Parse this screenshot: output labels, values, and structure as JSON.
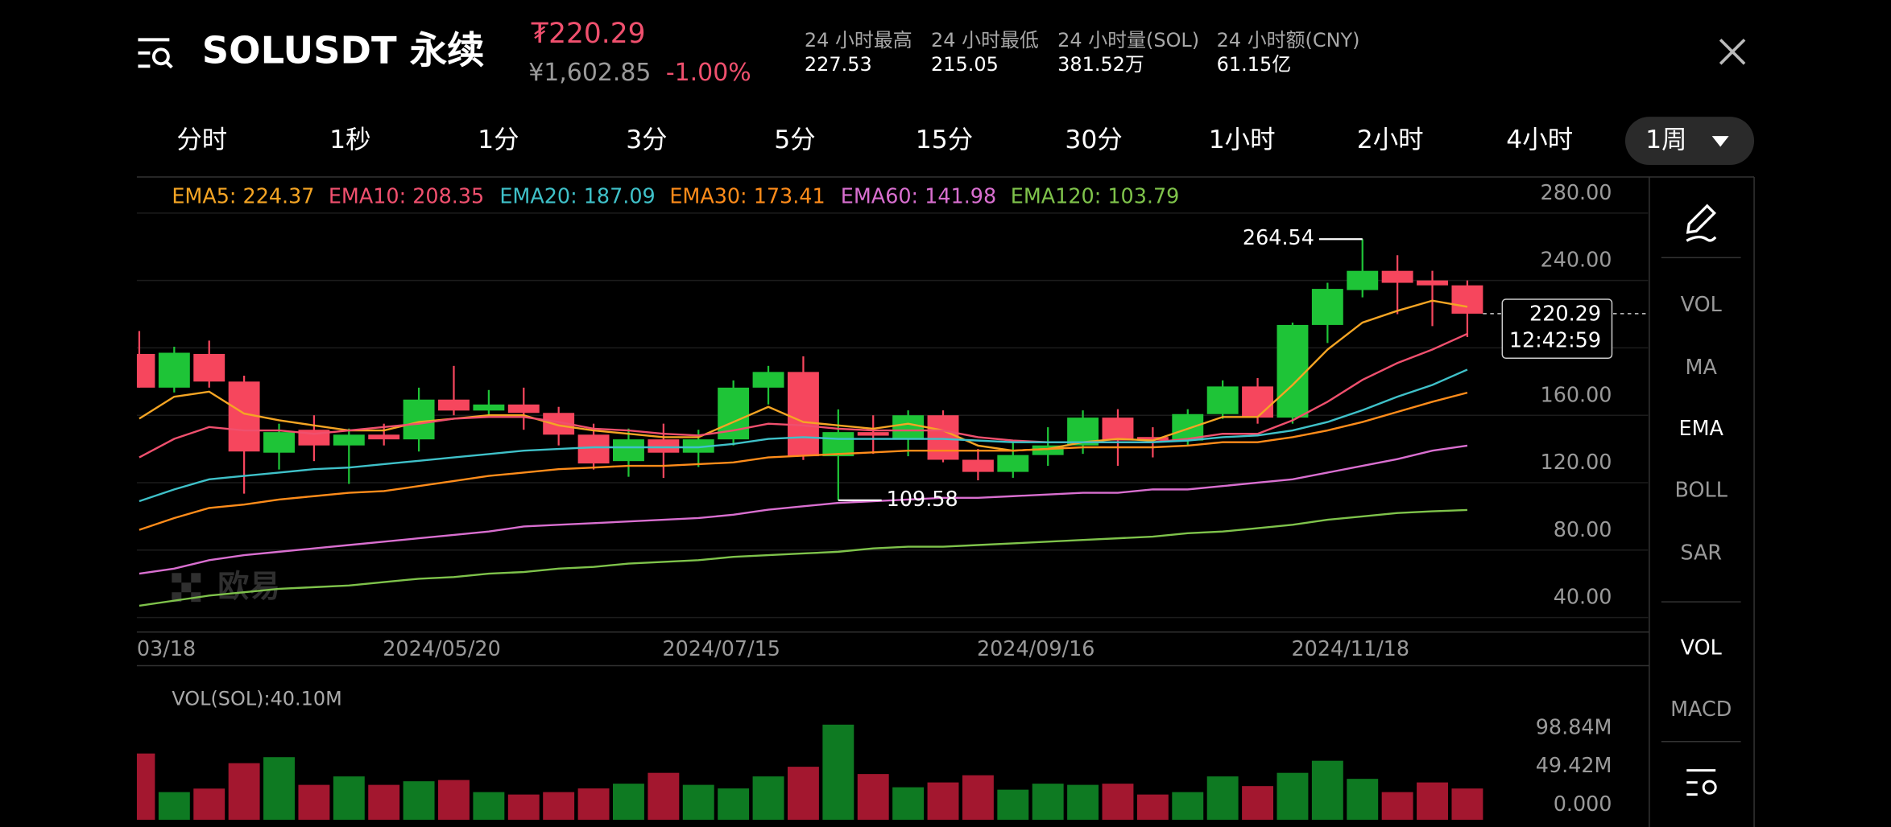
{
  "header": {
    "pair": "SOLUSDT 永续",
    "price": "₮220.29",
    "price_cny": "¥1,602.85",
    "change": "-1.00%",
    "stats": [
      {
        "label": "24 小时最高",
        "value": "227.53"
      },
      {
        "label": "24 小时最低",
        "value": "215.05"
      },
      {
        "label": "24 小时量(SOL)",
        "value": "381.52万"
      },
      {
        "label": "24 小时额(CNY)",
        "value": "61.15亿"
      }
    ]
  },
  "timeframes": [
    "分时",
    "1秒",
    "1分",
    "3分",
    "5分",
    "15分",
    "30分",
    "1小时",
    "2小时",
    "4小时"
  ],
  "selected_timeframe": "1周",
  "side_menu": {
    "main": [
      "VOL",
      "MA",
      "EMA",
      "BOLL",
      "SAR"
    ],
    "active_main": "EMA",
    "sub": [
      "VOL",
      "MACD"
    ],
    "active_sub": "VOL"
  },
  "chart": {
    "type": "candlestick",
    "watermark": "欧易",
    "up_color": "#1ec437",
    "down_color": "#f6465d",
    "categories": [
      "03/18",
      null,
      null,
      null,
      null,
      null,
      null,
      null,
      null,
      "2024/05/20",
      null,
      null,
      null,
      null,
      null,
      null,
      null,
      "2024/07/15",
      null,
      null,
      null,
      null,
      null,
      null,
      null,
      null,
      "2024/09/16",
      null,
      null,
      null,
      null,
      null,
      null,
      null,
      null,
      "2024/11/18",
      null,
      null,
      null
    ],
    "open": [
      196.4,
      176.4,
      196.4,
      180.0,
      137.8,
      151.4,
      142.1,
      148.5,
      145.7,
      169.3,
      162.8,
      166.4,
      161.4,
      148.5,
      132.8,
      145.7,
      137.8,
      145.7,
      176.4,
      185.7,
      135.7,
      150.0,
      145.7,
      160.0,
      133.6,
      126.4,
      136.4,
      142.1,
      158.6,
      147.1,
      145.0,
      160.7,
      177.1,
      158.6,
      213.6,
      234.3,
      245.7,
      240.0,
      237.1
    ],
    "close": [
      176.4,
      197.1,
      180.0,
      138.5,
      150.0,
      142.1,
      148.5,
      145.7,
      169.3,
      162.8,
      166.4,
      161.4,
      148.5,
      131.4,
      145.7,
      137.8,
      145.7,
      176.4,
      185.7,
      135.7,
      150.0,
      147.9,
      160.0,
      133.6,
      126.4,
      136.4,
      142.1,
      158.6,
      145.0,
      145.0,
      160.7,
      177.1,
      158.6,
      213.6,
      235.0,
      245.7,
      238.6,
      237.1,
      220.29
    ],
    "high": [
      210.0,
      200.7,
      204.3,
      183.5,
      155.0,
      160.0,
      152.1,
      155.0,
      176.4,
      189.3,
      175.0,
      176.4,
      165.0,
      155.0,
      152.1,
      155.0,
      151.4,
      180.7,
      189.3,
      195.0,
      163.5,
      160.0,
      162.9,
      162.9,
      140.0,
      144.3,
      152.9,
      162.9,
      163.6,
      152.9,
      163.6,
      180.7,
      182.1,
      215.0,
      238.6,
      264.54,
      255.0,
      245.7,
      240.0
    ],
    "low": [
      176.4,
      173.5,
      176.4,
      113.5,
      127.8,
      132.8,
      119.3,
      142.1,
      138.5,
      160.0,
      160.0,
      151.4,
      142.1,
      127.8,
      123.5,
      122.8,
      129.3,
      142.1,
      166.4,
      133.5,
      109.58,
      137.1,
      135.7,
      132.1,
      121.4,
      122.9,
      130.0,
      137.1,
      130.0,
      135.0,
      142.1,
      157.9,
      155.0,
      155.0,
      202.9,
      230.0,
      220.0,
      212.9,
      206.4
    ],
    "high_label_index": 35,
    "low_label_index": 20,
    "last_price": 220.29,
    "countdown": "12:42:59",
    "ylim": [
      31.4,
      300.7
    ],
    "yticks": [
      {
        "value": 280,
        "label": "280.00"
      },
      {
        "value": 240,
        "label": "240.00"
      },
      {
        "value": 200,
        "label": "200.00"
      },
      {
        "value": 160,
        "label": "160.00"
      },
      {
        "value": 120,
        "label": "120.00"
      },
      {
        "value": 80,
        "label": "80.00"
      },
      {
        "value": 40,
        "label": "40.00"
      }
    ],
    "ema": [
      {
        "name": "EMA5",
        "legend_label": "EMA5: 224.37",
        "color": "#f5a524",
        "values": [
          158,
          171,
          174,
          161,
          157,
          154,
          151,
          151,
          156,
          158,
          160,
          160,
          154,
          151,
          149,
          147,
          147,
          156,
          165,
          156,
          154,
          152,
          155,
          151,
          142,
          139,
          140,
          144,
          146,
          145,
          152,
          159,
          159,
          178,
          199,
          215,
          222,
          228,
          224.37
        ]
      },
      {
        "name": "EMA10",
        "legend_label": "EMA10: 208.35",
        "color": "#f0506e",
        "values": [
          135,
          146,
          153,
          151,
          151,
          149,
          151,
          153,
          155,
          158,
          159,
          159,
          156,
          152,
          151,
          149,
          148,
          151,
          155,
          154,
          152,
          151,
          151,
          151,
          147,
          145,
          144,
          144,
          144,
          144,
          146,
          149,
          149,
          157,
          168,
          181,
          191,
          199,
          208.35
        ]
      },
      {
        "name": "EMA20",
        "legend_label": "EMA20: 187.09",
        "color": "#3fc1c9",
        "values": [
          109,
          116,
          122,
          124,
          126,
          128,
          129,
          131,
          133,
          135,
          137,
          139,
          140,
          141,
          141,
          141,
          141,
          143,
          146,
          147,
          146,
          146,
          146,
          146,
          145,
          144,
          144,
          144,
          144,
          144,
          145,
          147,
          148,
          151,
          156,
          163,
          171,
          178,
          187.09
        ]
      },
      {
        "name": "EMA30",
        "legend_label": "EMA30: 173.41",
        "color": "#ff8c1a",
        "values": [
          92,
          99,
          105,
          107,
          110,
          112,
          114,
          115,
          118,
          121,
          124,
          126,
          128,
          129,
          130,
          130,
          131,
          132,
          135,
          136,
          137,
          138,
          139,
          139,
          139,
          139,
          140,
          141,
          141,
          141,
          142,
          144,
          144,
          147,
          151,
          156,
          162,
          168,
          173.41
        ]
      },
      {
        "name": "EMA60",
        "legend_label": "EMA60: 141.98",
        "color": "#d96fd0",
        "values": [
          66,
          69,
          74,
          77,
          79,
          81,
          83,
          85,
          87,
          89,
          91,
          94,
          95,
          96,
          97,
          98,
          99,
          101,
          104,
          106,
          108,
          109,
          110,
          111,
          111,
          112,
          113,
          114,
          114,
          116,
          116,
          118,
          120,
          122,
          126,
          130,
          134,
          139,
          141.98
        ]
      },
      {
        "name": "EMA120",
        "legend_label": "EMA120: 103.79",
        "color": "#7fc34b",
        "values": [
          47,
          50,
          53,
          55,
          57,
          58,
          59,
          61,
          63,
          64,
          66,
          67,
          69,
          70,
          72,
          73,
          74,
          76,
          77,
          78,
          79,
          81,
          82,
          82,
          83,
          84,
          85,
          86,
          87,
          88,
          90,
          91,
          93,
          95,
          98,
          100,
          102,
          103,
          103.79
        ]
      }
    ],
    "volume": {
      "label": "VOL(SOL):40.10M",
      "up_color": "#0e7a22",
      "down_color": "#a3172f",
      "values": [
        85,
        35.5,
        40,
        72.6,
        80.3,
        44.8,
        55.6,
        44.8,
        49.4,
        51,
        35.5,
        32.4,
        35.5,
        40.2,
        46.3,
        60.2,
        44.8,
        40.2,
        55.6,
        68,
        122,
        58.7,
        41.7,
        47.9,
        57.1,
        38.6,
        46.3,
        44.8,
        46.3,
        32.4,
        35.5,
        55.6,
        43.2,
        60.2,
        75.7,
        52.5,
        35.5,
        47.9,
        40.1
      ],
      "ylim": [
        0,
        193
      ],
      "yticks": [
        {
          "value": 98.84,
          "label": "98.84M"
        },
        {
          "value": 49.42,
          "label": "49.42M"
        },
        {
          "value": 0,
          "label": "0.000"
        }
      ]
    }
  }
}
